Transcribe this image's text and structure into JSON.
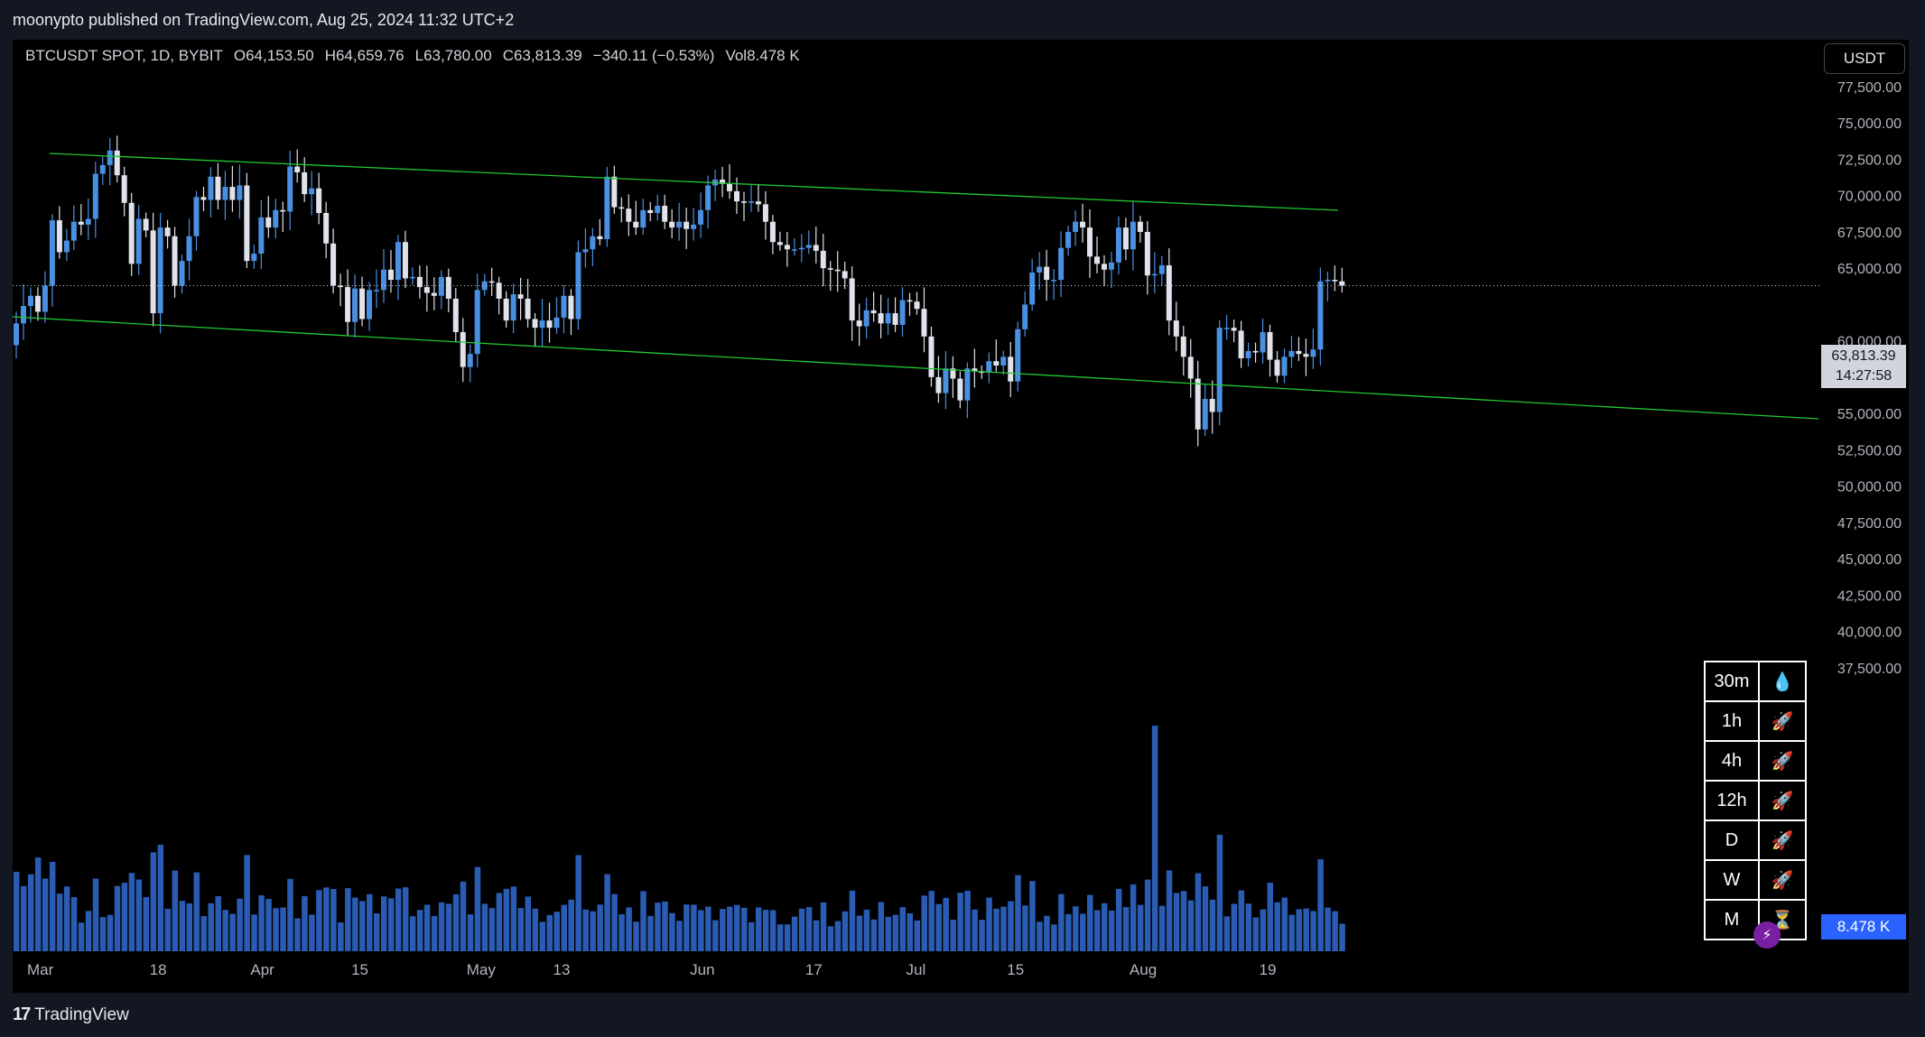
{
  "header": {
    "title": "moonypto published on TradingView.com, Aug 25, 2024 11:32 UTC+2"
  },
  "legend": {
    "symbol": "BTCUSDT SPOT, 1D, BYBIT",
    "open": "O64,153.50",
    "high": "H64,659.76",
    "low": "L63,780.00",
    "close": "C63,813.39",
    "change": "−340.11 (−0.53%)",
    "volume": "Vol8.478 K"
  },
  "currency_button": "USDT",
  "last_price": "63,813.39",
  "countdown": "14:27:58",
  "volume_label": "8.478 K",
  "footer": {
    "brand": "TradingView",
    "logo": "17"
  },
  "timeframe_table": [
    {
      "tf": "30m",
      "icon": "💧",
      "icon_name": "drop-icon"
    },
    {
      "tf": "1h",
      "icon": "🚀",
      "icon_name": "rocket-icon"
    },
    {
      "tf": "4h",
      "icon": "🚀",
      "icon_name": "rocket-icon"
    },
    {
      "tf": "12h",
      "icon": "🚀",
      "icon_name": "rocket-icon"
    },
    {
      "tf": "D",
      "icon": "🚀",
      "icon_name": "rocket-icon"
    },
    {
      "tf": "W",
      "icon": "🚀",
      "icon_name": "rocket-icon"
    },
    {
      "tf": "M",
      "icon": "⏳",
      "icon_name": "hourglass-icon"
    }
  ],
  "colors": {
    "up": "#4a90e2",
    "down": "#e0e3eb",
    "volume": "#2f66c8",
    "channel": "#22c832",
    "background": "#000000",
    "frame": "#131722"
  },
  "chart_data": {
    "type": "candlestick",
    "title": "BTCUSDT SPOT, 1D, BYBIT",
    "y_ticks": [
      77500,
      75000,
      72500,
      70000,
      67500,
      65000,
      62500,
      60000,
      57500,
      55000,
      52500,
      50000,
      47500,
      45000,
      42500,
      40000,
      37500,
      35000
    ],
    "y_tick_labels": [
      "77,500.00",
      "75,000.00",
      "72,500.00",
      "70,000.00",
      "67,500.00",
      "65,000.00",
      "",
      "60,000.00",
      "57,500.00",
      "55,000.00",
      "52,500.00",
      "50,000.00",
      "47,500.00",
      "45,000.00",
      "42,500.00",
      "40,000.00",
      "37,500.00",
      ""
    ],
    "x_labels": [
      {
        "label": "Mar",
        "date": "2024-03-01"
      },
      {
        "label": "18",
        "date": "2024-03-18"
      },
      {
        "label": "Apr",
        "date": "2024-04-01"
      },
      {
        "label": "15",
        "date": "2024-04-15"
      },
      {
        "label": "May",
        "date": "2024-05-01"
      },
      {
        "label": "13",
        "date": "2024-05-13"
      },
      {
        "label": "Jun",
        "date": "2024-06-01"
      },
      {
        "label": "17",
        "date": "2024-06-17"
      },
      {
        "label": "Jul",
        "date": "2024-07-01"
      },
      {
        "label": "15",
        "date": "2024-07-15"
      },
      {
        "label": "Aug",
        "date": "2024-08-01"
      },
      {
        "label": "19",
        "date": "2024-08-19"
      }
    ],
    "start_date": "2024-02-29",
    "close": [
      61200,
      62400,
      63100,
      62000,
      63800,
      68300,
      66100,
      66900,
      68200,
      68000,
      68400,
      71500,
      72100,
      73100,
      71400,
      69500,
      65300,
      68400,
      67600,
      61900,
      67800,
      67200,
      63800,
      65500,
      67200,
      69900,
      69700,
      71300,
      69700,
      70600,
      69700,
      70700,
      65500,
      66000,
      68500,
      67800,
      69000,
      68900,
      72000,
      71600,
      70100,
      70500,
      68800,
      66700,
      63800,
      63700,
      61300,
      63600,
      61500,
      63500,
      63500,
      64900,
      64200,
      66800,
      64300,
      64400,
      63700,
      63300,
      63100,
      64400,
      62900,
      60600,
      58200,
      59100,
      63500,
      64100,
      64000,
      62900,
      61400,
      63200,
      62900,
      61500,
      60900,
      61400,
      60900,
      61600,
      63100,
      61500,
      66100,
      66300,
      67200,
      67000,
      71300,
      69200,
      69100,
      68200,
      67800,
      69000,
      68800,
      69300,
      68200,
      67800,
      68200,
      67700,
      68000,
      69000,
      70700,
      71100,
      70800,
      70300,
      69600,
      69500,
      69600,
      69400,
      68200,
      66800,
      66600,
      66300,
      66300,
      66400,
      66600,
      66200,
      65000,
      64900,
      64800,
      64300,
      61400,
      61000,
      62100,
      61900,
      61200,
      61900,
      61100,
      62800,
      62700,
      62200,
      60300,
      57500,
      56400,
      58100,
      57400,
      55900,
      58100,
      57900,
      57800,
      58600,
      58300,
      58900,
      57200,
      60800,
      62500,
      64700,
      65100,
      64200,
      64200,
      66400,
      67500,
      68200,
      67800,
      65800,
      65300,
      64900,
      65400,
      67800,
      66300,
      68200,
      67500,
      64500,
      64600,
      65200,
      61400,
      60300,
      58900,
      57400,
      53900,
      56000,
      55100,
      60900,
      60900,
      60700,
      58800,
      59300,
      59200,
      60600,
      58700,
      57600,
      58900,
      59300,
      59100,
      58900,
      59400,
      64100,
      64200,
      64100,
      63800
    ],
    "volume_scale": "relative"
  }
}
